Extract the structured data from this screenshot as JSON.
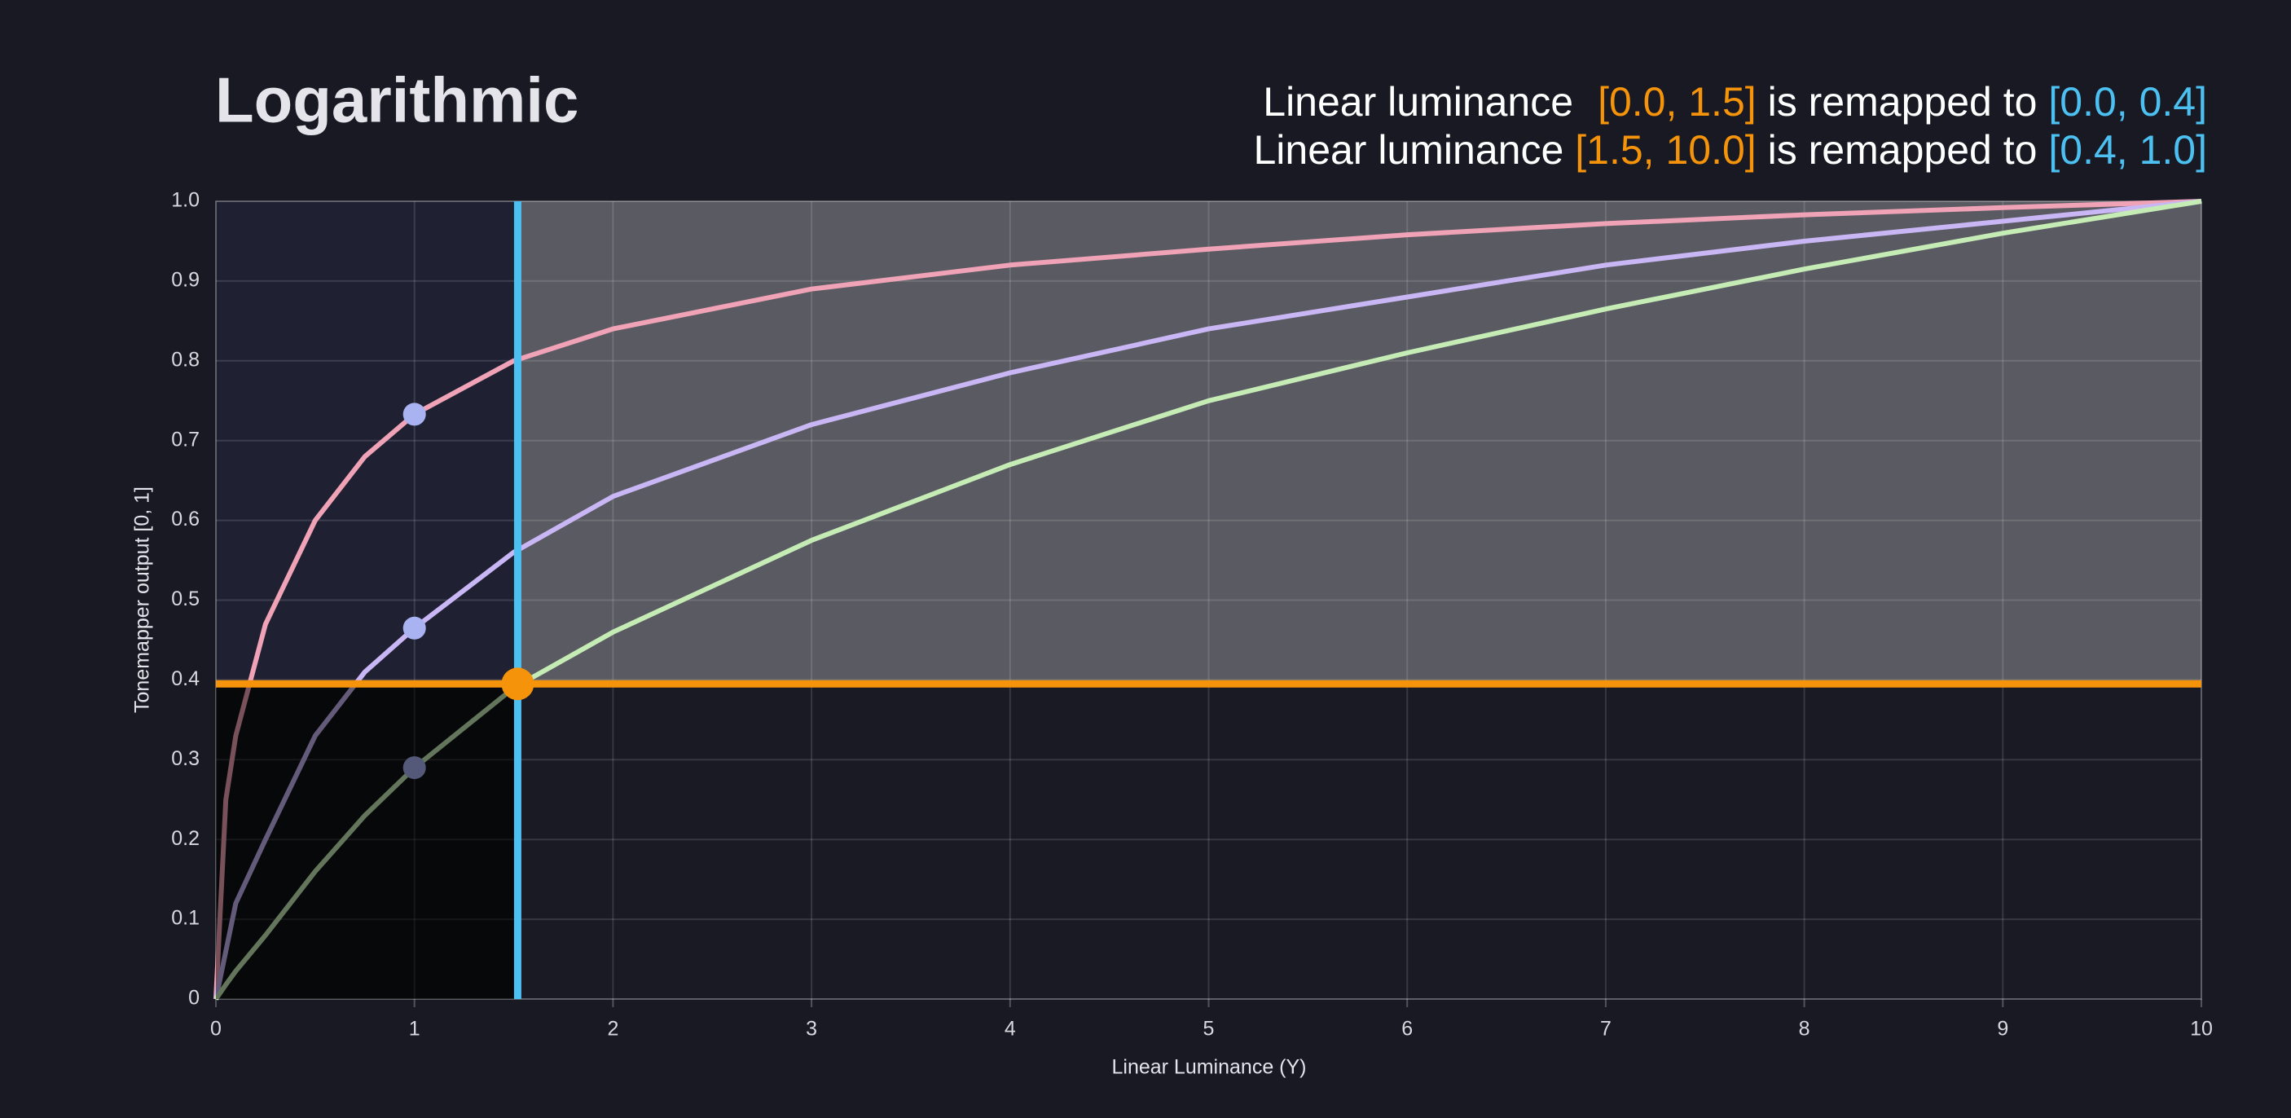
{
  "chart_data": {
    "type": "line",
    "title": "Logarithmic",
    "notes": [
      [
        "Linear luminance",
        "[0.0, 1.5]",
        "is remapped to",
        "[0.0, 0.4]"
      ],
      [
        "Linear luminance",
        "[1.5, 10.0]",
        "is remapped to",
        "[0.4, 1.0]"
      ]
    ],
    "x_label": "Linear Luminance (Y)",
    "y_label": "Tonemapper output [0, 1]",
    "x": [
      0,
      0.05,
      0.1,
      0.25,
      0.5,
      0.75,
      1,
      1.5,
      2,
      3,
      4,
      5,
      6,
      7,
      8,
      9,
      10
    ],
    "series": [
      {
        "color": "#f0a2b6",
        "values": [
          0,
          0.25,
          0.33,
          0.47,
          0.6,
          0.68,
          0.733,
          0.8,
          0.84,
          0.89,
          0.92,
          0.94,
          0.958,
          0.972,
          0.983,
          0.992,
          1
        ]
      },
      {
        "color": "#c9b6f5",
        "values": [
          0,
          0.06,
          0.12,
          0.2,
          0.33,
          0.41,
          0.465,
          0.56,
          0.63,
          0.72,
          0.785,
          0.84,
          0.88,
          0.92,
          0.95,
          0.975,
          1
        ]
      },
      {
        "color": "#c6ecb6",
        "values": [
          0,
          0.018,
          0.035,
          0.08,
          0.16,
          0.23,
          0.29,
          0.39,
          0.46,
          0.575,
          0.67,
          0.75,
          0.81,
          0.865,
          0.915,
          0.96,
          1
        ]
      }
    ],
    "marker_index": 6,
    "marker_color": "#a9b3f2",
    "threshold": {
      "x": 1.52,
      "y": 0.395,
      "x_color": "#4cc0f0",
      "y_color": "#f5930a"
    },
    "xlim": [
      0,
      10
    ],
    "xticks": [
      0,
      1,
      2,
      3,
      4,
      5,
      6,
      7,
      8,
      9,
      10
    ],
    "ylim": [
      0,
      1
    ],
    "yticks": [
      0,
      0.1,
      0.2,
      0.3,
      0.4,
      0.5,
      0.6,
      0.7,
      0.8,
      0.9,
      {
        "value": 1,
        "label": "1.0"
      }
    ],
    "grid": true
  }
}
